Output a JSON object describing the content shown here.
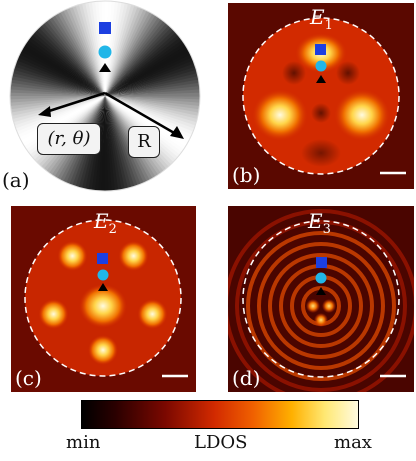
{
  "panels": {
    "a": {
      "label": "(a)",
      "coord_label": "(r, θ)",
      "radius_label": "R"
    },
    "b": {
      "label": "(b)",
      "title_base": "E",
      "title_sub": "1"
    },
    "c": {
      "label": "(c)",
      "title_base": "E",
      "title_sub": "2"
    },
    "d": {
      "label": "(d)",
      "title_base": "E",
      "title_sub": "3"
    }
  },
  "markers": [
    "square",
    "circle",
    "triangle"
  ],
  "colors": {
    "square": "#1c3fe0",
    "circle": "#21b6e8",
    "triangle": "#000000",
    "map_low": "#1a0000",
    "map_mid": "#d22a00",
    "map_high": "#fffbe0"
  },
  "colorbar": {
    "min_label": "min",
    "center_label": "LDOS",
    "max_label": "max"
  }
}
